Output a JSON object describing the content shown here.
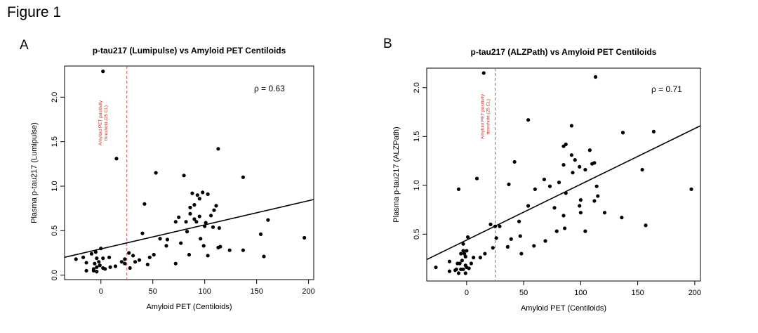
{
  "figure_title": "Figure 1",
  "chart_data": [
    {
      "type": "scatter",
      "panel": "A",
      "title": "p-tau217 (Lumipulse) vs Amyloid PET Centiloids",
      "xlabel": "Amyloid PET (Centiloids)",
      "ylabel": "Plasma p-tau217 (Lumipulse)",
      "xlim": [
        -35,
        205
      ],
      "ylim": [
        -0.05,
        2.35
      ],
      "xticks": [
        0,
        50,
        100,
        150,
        200
      ],
      "yticks": [
        0.0,
        0.5,
        1.0,
        1.5,
        2.0
      ],
      "grid": false,
      "annotation": "ρ = 0.63",
      "threshold": {
        "x": 25,
        "label_lines": [
          "Amyloid PET positivity",
          "threshold (25 CL)"
        ],
        "color": "#d9534f"
      },
      "fit_line": {
        "x": [
          -35,
          205
        ],
        "y": [
          0.2,
          0.85
        ]
      },
      "points": [
        [
          2,
          2.29
        ],
        [
          15,
          1.31
        ],
        [
          113,
          1.42
        ],
        [
          53,
          1.15
        ],
        [
          80,
          1.12
        ],
        [
          137,
          1.1
        ],
        [
          42,
          0.8
        ],
        [
          98,
          0.93
        ],
        [
          93,
          0.9
        ],
        [
          88,
          0.92
        ],
        [
          103,
          0.91
        ],
        [
          95,
          0.86
        ],
        [
          90,
          0.79
        ],
        [
          111,
          0.78
        ],
        [
          86,
          0.76
        ],
        [
          109,
          0.73
        ],
        [
          86,
          0.69
        ],
        [
          106,
          0.67
        ],
        [
          95,
          0.66
        ],
        [
          90,
          0.63
        ],
        [
          161,
          0.62
        ],
        [
          75,
          0.65
        ],
        [
          72,
          0.6
        ],
        [
          82,
          0.6
        ],
        [
          92,
          0.6
        ],
        [
          101,
          0.59
        ],
        [
          100,
          0.55
        ],
        [
          114,
          0.53
        ],
        [
          108,
          0.54
        ],
        [
          40,
          0.47
        ],
        [
          83,
          0.49
        ],
        [
          154,
          0.46
        ],
        [
          196,
          0.42
        ],
        [
          57,
          0.41
        ],
        [
          96,
          0.41
        ],
        [
          64,
          0.4
        ],
        [
          77,
          0.36
        ],
        [
          63,
          0.33
        ],
        [
          99,
          0.33
        ],
        [
          113,
          0.31
        ],
        [
          115,
          0.32
        ],
        [
          124,
          0.28
        ],
        [
          137,
          0.28
        ],
        [
          0,
          0.3
        ],
        [
          -5,
          0.26
        ],
        [
          -9,
          0.24
        ],
        [
          27,
          0.25
        ],
        [
          31,
          0.22
        ],
        [
          51,
          0.23
        ],
        [
          85,
          0.23
        ],
        [
          103,
          0.22
        ],
        [
          157,
          0.21
        ],
        [
          -17,
          0.2
        ],
        [
          -4,
          0.19
        ],
        [
          2,
          0.19
        ],
        [
          8,
          0.2
        ],
        [
          47,
          0.2
        ],
        [
          23,
          0.18
        ],
        [
          -24,
          0.18
        ],
        [
          37,
          0.17
        ],
        [
          33,
          0.15
        ],
        [
          -2,
          0.15
        ],
        [
          -14,
          0.14
        ],
        [
          20,
          0.15
        ],
        [
          23,
          0.13
        ],
        [
          72,
          0.13
        ],
        [
          45,
          0.12
        ],
        [
          -6,
          0.13
        ],
        [
          -1,
          0.11
        ],
        [
          -4,
          0.09
        ],
        [
          2,
          0.08
        ],
        [
          4,
          0.07
        ],
        [
          -7,
          0.07
        ],
        [
          14,
          0.1
        ],
        [
          9,
          0.09
        ],
        [
          -14,
          0.05
        ],
        [
          -4,
          0.04
        ],
        [
          -7,
          0.05
        ],
        [
          28,
          0.08
        ]
      ]
    },
    {
      "type": "scatter",
      "panel": "B",
      "title": "p-tau217 (ALZPath) vs Amyloid PET Centiloids",
      "xlabel": "Amyloid PET (Centiloids)",
      "ylabel": "Plasma p-tau217 (ALZPath)",
      "xlim": [
        -35,
        205
      ],
      "ylim": [
        0.02,
        2.2
      ],
      "xticks": [
        0,
        50,
        100,
        150,
        200
      ],
      "yticks": [
        0.5,
        1.0,
        1.5,
        2.0
      ],
      "grid": false,
      "annotation": "ρ = 0.71",
      "threshold": {
        "x": 25,
        "label_lines": [
          "Amyloid PET positivity",
          "threshold (25 CL)"
        ],
        "color": "#d9534f"
      },
      "fit_line": {
        "x": [
          -35,
          205
        ],
        "y": [
          0.24,
          1.61
        ]
      },
      "points": [
        [
          15,
          2.15
        ],
        [
          113,
          2.11
        ],
        [
          54,
          1.67
        ],
        [
          92,
          1.61
        ],
        [
          164,
          1.55
        ],
        [
          137,
          1.54
        ],
        [
          87,
          1.42
        ],
        [
          85,
          1.4
        ],
        [
          108,
          1.36
        ],
        [
          92,
          1.31
        ],
        [
          112,
          1.23
        ],
        [
          110,
          1.22
        ],
        [
          95,
          1.26
        ],
        [
          42,
          1.24
        ],
        [
          85,
          1.21
        ],
        [
          104,
          1.16
        ],
        [
          154,
          1.16
        ],
        [
          99,
          1.19
        ],
        [
          9,
          1.07
        ],
        [
          68,
          1.06
        ],
        [
          93,
          1.13
        ],
        [
          81,
          1.03
        ],
        [
          37,
          1.01
        ],
        [
          73,
          0.99
        ],
        [
          114,
          0.99
        ],
        [
          -7,
          0.96
        ],
        [
          60,
          0.96
        ],
        [
          197,
          0.96
        ],
        [
          87,
          0.92
        ],
        [
          115,
          0.89
        ],
        [
          100,
          0.85
        ],
        [
          112,
          0.84
        ],
        [
          54,
          0.79
        ],
        [
          77,
          0.77
        ],
        [
          99,
          0.79
        ],
        [
          100,
          0.72
        ],
        [
          85,
          0.69
        ],
        [
          121,
          0.72
        ],
        [
          46,
          0.63
        ],
        [
          136,
          0.67
        ],
        [
          21,
          0.6
        ],
        [
          25,
          0.58
        ],
        [
          29,
          0.58
        ],
        [
          86,
          0.56
        ],
        [
          104,
          0.53
        ],
        [
          79,
          0.53
        ],
        [
          157,
          0.59
        ],
        [
          39,
          0.45
        ],
        [
          47,
          0.48
        ],
        [
          26,
          0.46
        ],
        [
          1,
          0.47
        ],
        [
          -3,
          0.4
        ],
        [
          69,
          0.43
        ],
        [
          59,
          0.38
        ],
        [
          36,
          0.37
        ],
        [
          23,
          0.36
        ],
        [
          0,
          0.33
        ],
        [
          -3,
          0.33
        ],
        [
          -2,
          0.3
        ],
        [
          -5,
          0.3
        ],
        [
          -1,
          0.27
        ],
        [
          6,
          0.26
        ],
        [
          12,
          0.26
        ],
        [
          -4,
          0.23
        ],
        [
          -8,
          0.2
        ],
        [
          -6,
          0.2
        ],
        [
          4,
          0.2
        ],
        [
          -1,
          0.18
        ],
        [
          0,
          0.16
        ],
        [
          -15,
          0.22
        ],
        [
          -27,
          0.16
        ],
        [
          -9,
          0.14
        ],
        [
          -3,
          0.14
        ],
        [
          -15,
          0.12
        ],
        [
          -1,
          0.1
        ],
        [
          -5,
          0.14
        ],
        [
          2,
          0.15
        ],
        [
          -7,
          0.1
        ],
        [
          -10,
          0.13
        ],
        [
          16,
          0.3
        ],
        [
          48,
          0.3
        ]
      ]
    }
  ]
}
